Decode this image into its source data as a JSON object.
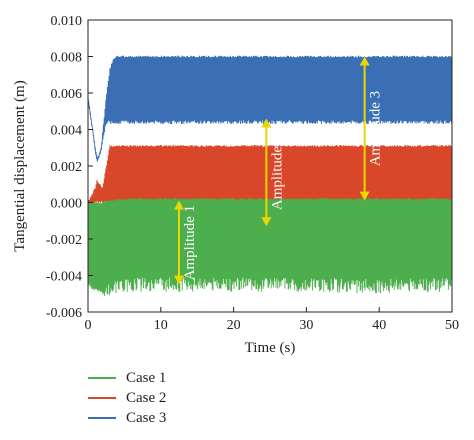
{
  "chart_data": {
    "type": "line",
    "xlabel": "Time (s)",
    "ylabel": "Tangential displacement (m)",
    "xlim": [
      0,
      50
    ],
    "ylim": [
      -0.006,
      0.01
    ],
    "x_ticks": [
      0,
      10,
      20,
      30,
      40,
      50
    ],
    "y_ticks": [
      -0.006,
      -0.004,
      -0.002,
      0.0,
      0.002,
      0.004,
      0.006,
      0.008,
      0.01
    ],
    "y_tick_labels": [
      "-0.006",
      "-0.004",
      "-0.002",
      "0.000",
      "0.002",
      "0.004",
      "0.006",
      "0.008",
      "0.010"
    ],
    "legend_position": "bottom-left, outside plot",
    "series": [
      {
        "name": "Case 1",
        "color": "#4cae4c",
        "envelope_time": [
          0,
          1,
          2,
          3,
          5,
          10,
          20,
          30,
          40,
          50
        ],
        "envelope_upper": [
          0.0,
          0.0,
          0.0,
          0.0001,
          0.0002,
          0.0002,
          0.0002,
          0.0002,
          0.0002,
          0.0002
        ],
        "envelope_lower": [
          -0.0045,
          -0.0048,
          -0.0048,
          -0.0047,
          -0.0045,
          -0.0045,
          -0.0045,
          -0.0045,
          -0.0046,
          -0.0045
        ]
      },
      {
        "name": "Case 2",
        "color": "#d9472b",
        "envelope_time": [
          0,
          1,
          1.2,
          1.6,
          2,
          3,
          5,
          10,
          20,
          30,
          40,
          50
        ],
        "envelope_upper": [
          0.0,
          0.0008,
          0.0012,
          0.001,
          0.0008,
          0.0031,
          0.0031,
          0.0031,
          0.0031,
          0.0031,
          0.0031,
          0.0031
        ],
        "envelope_lower": [
          0.0,
          0.0,
          0.0,
          0.0,
          0.0,
          0.0,
          0.0,
          0.0,
          0.0,
          0.0,
          0.0,
          0.0
        ]
      },
      {
        "name": "Case 3",
        "color": "#3a6fb5",
        "envelope_time": [
          0,
          0.5,
          1,
          1.3,
          1.8,
          2.5,
          3,
          3.5,
          4,
          10,
          20,
          30,
          40,
          50
        ],
        "envelope_upper": [
          0.0058,
          0.0045,
          0.003,
          0.0024,
          0.003,
          0.0058,
          0.0073,
          0.0079,
          0.008,
          0.008,
          0.008,
          0.008,
          0.008,
          0.008
        ],
        "envelope_lower": [
          0.0058,
          0.0042,
          0.0028,
          0.0022,
          0.0028,
          0.0044,
          0.0044,
          0.0044,
          0.0044,
          0.0044,
          0.0044,
          0.0044,
          0.0044,
          0.0044
        ]
      }
    ],
    "annotations": [
      {
        "text": "Amplitude 1",
        "x": 12.5,
        "y_from": -0.0045,
        "y_to": 0.0001,
        "color": "#e8d800"
      },
      {
        "text": "Amplitude 2",
        "x": 24.5,
        "y_from": -0.0013,
        "y_to": 0.0046,
        "color": "#e8d800"
      },
      {
        "text": "Amplitude 3",
        "x": 38.0,
        "y_from": 0.0001,
        "y_to": 0.008,
        "color": "#e8d800"
      }
    ]
  }
}
